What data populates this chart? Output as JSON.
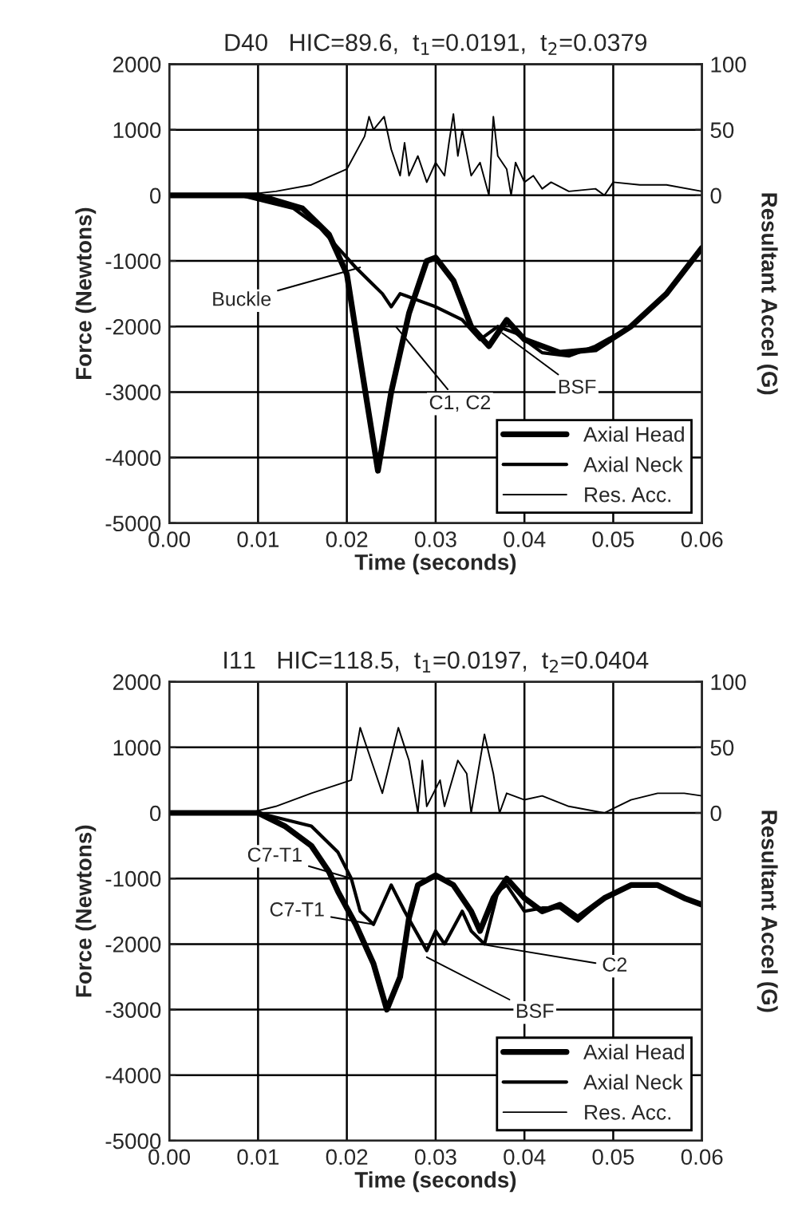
{
  "chart_data": [
    {
      "type": "line",
      "title": "D40   HIC=89.6,  t$_{1}$=0.0191,  t$_{2}$=0.0379",
      "xlabel": "Time (seconds)",
      "ylabel": "Force (Newtons)",
      "y2label": "Resultant Accel (G)",
      "xlim": [
        0,
        0.06
      ],
      "xticks": [
        {
          "value": 0,
          "label": "0.00"
        },
        {
          "value": 0.01,
          "label": "0.01"
        },
        {
          "value": 0.02,
          "label": "0.02"
        },
        {
          "value": 0.03,
          "label": "0.03"
        },
        {
          "value": 0.04,
          "label": "0.04"
        },
        {
          "value": 0.05,
          "label": "0.05"
        },
        {
          "value": 0.06,
          "label": "0.06"
        }
      ],
      "ylim": [
        -5000,
        2000
      ],
      "yticks": [
        -5000,
        -4000,
        -3000,
        -2000,
        -1000,
        0,
        1000,
        2000
      ],
      "y2lim": [
        -250,
        100
      ],
      "y2ticks": [
        0,
        50,
        100
      ],
      "grid": true,
      "legend": "bottom right",
      "series": [
        {
          "name": "Axial Head",
          "color": "#000000",
          "x": [
            0,
            0.01,
            0.015,
            0.018,
            0.02,
            0.0215,
            0.0235,
            0.025,
            0.027,
            0.029,
            0.03,
            0.032,
            0.034,
            0.036,
            0.038,
            0.04,
            0.044,
            0.048,
            0.052,
            0.056,
            0.06
          ],
          "values": [
            0,
            0,
            -200,
            -600,
            -1200,
            -2500,
            -4200,
            -3000,
            -1800,
            -1000,
            -950,
            -1300,
            -2000,
            -2300,
            -1900,
            -2200,
            -2400,
            -2350,
            -2000,
            -1500,
            -800
          ]
        },
        {
          "name": "Axial Neck",
          "color": "#000000",
          "x": [
            0,
            0.008,
            0.014,
            0.017,
            0.019,
            0.021,
            0.0225,
            0.024,
            0.025,
            0.026,
            0.028,
            0.03,
            0.033,
            0.035,
            0.037,
            0.039,
            0.042,
            0.045,
            0.048,
            0.052,
            0.056,
            0.06
          ],
          "values": [
            0,
            0,
            -200,
            -500,
            -800,
            -1100,
            -1300,
            -1500,
            -1700,
            -1500,
            -1600,
            -1700,
            -1900,
            -2200,
            -2000,
            -2100,
            -2400,
            -2450,
            -2300,
            -2000,
            -1500,
            -800
          ]
        },
        {
          "name": "Res. Acc.",
          "color": "#000000",
          "axis": "y2",
          "x": [
            0,
            0.008,
            0.012,
            0.016,
            0.02,
            0.022,
            0.0225,
            0.023,
            0.0242,
            0.025,
            0.026,
            0.0265,
            0.027,
            0.028,
            0.029,
            0.03,
            0.031,
            0.0315,
            0.032,
            0.0325,
            0.033,
            0.034,
            0.035,
            0.036,
            0.0365,
            0.037,
            0.038,
            0.0385,
            0.039,
            0.04,
            0.041,
            0.042,
            0.043,
            0.045,
            0.048,
            0.049,
            0.05,
            0.053,
            0.056,
            0.06
          ],
          "values": [
            0,
            0,
            3,
            8,
            20,
            45,
            60,
            50,
            60,
            35,
            15,
            40,
            15,
            30,
            10,
            25,
            15,
            40,
            62,
            30,
            50,
            15,
            25,
            0,
            60,
            30,
            20,
            0,
            25,
            10,
            15,
            5,
            10,
            3,
            5,
            0,
            10,
            8,
            8,
            3
          ]
        }
      ],
      "annotations": [
        {
          "text": "Buckle",
          "x": 0.0215,
          "y": -1100
        },
        {
          "text": "C1, C2",
          "x": 0.0255,
          "y": -2000
        },
        {
          "text": "BSF",
          "x": 0.0375,
          "y": -2100
        }
      ]
    },
    {
      "type": "line",
      "title": "I11   HIC=118.5,  t$_{1}$=0.0197,  t$_{2}$=0.0404",
      "xlabel": "Time (seconds)",
      "ylabel": "Force (Newtons)",
      "y2label": "Resultant Accel (G)",
      "xlim": [
        0,
        0.06
      ],
      "xticks": [
        {
          "value": 0,
          "label": "0.00"
        },
        {
          "value": 0.01,
          "label": "0.01"
        },
        {
          "value": 0.02,
          "label": "0.02"
        },
        {
          "value": 0.03,
          "label": "0.03"
        },
        {
          "value": 0.04,
          "label": "0.04"
        },
        {
          "value": 0.05,
          "label": "0.05"
        },
        {
          "value": 0.06,
          "label": "0.06"
        }
      ],
      "ylim": [
        -5000,
        2000
      ],
      "yticks": [
        -5000,
        -4000,
        -3000,
        -2000,
        -1000,
        0,
        1000,
        2000
      ],
      "y2lim": [
        -250,
        100
      ],
      "y2ticks": [
        0,
        50,
        100
      ],
      "grid": true,
      "legend": "bottom right",
      "series": [
        {
          "name": "Axial Head",
          "color": "#000000",
          "x": [
            0,
            0.01,
            0.013,
            0.016,
            0.018,
            0.019,
            0.021,
            0.023,
            0.0245,
            0.026,
            0.027,
            0.028,
            0.03,
            0.032,
            0.034,
            0.035,
            0.0365,
            0.038,
            0.04,
            0.042,
            0.044,
            0.046,
            0.049,
            0.052,
            0.055,
            0.058,
            0.06
          ],
          "values": [
            0,
            0,
            -200,
            -500,
            -900,
            -1200,
            -1700,
            -2300,
            -3000,
            -2500,
            -1600,
            -1100,
            -950,
            -1100,
            -1500,
            -1800,
            -1300,
            -1000,
            -1300,
            -1500,
            -1400,
            -1600,
            -1300,
            -1100,
            -1100,
            -1300,
            -1400
          ]
        },
        {
          "name": "Axial Neck",
          "color": "#000000",
          "x": [
            0,
            0.01,
            0.016,
            0.019,
            0.0205,
            0.0215,
            0.023,
            0.025,
            0.0265,
            0.029,
            0.03,
            0.031,
            0.033,
            0.034,
            0.0355,
            0.037,
            0.038,
            0.04,
            0.042,
            0.044,
            0.046,
            0.049,
            0.052,
            0.055,
            0.058,
            0.06
          ],
          "values": [
            0,
            0,
            -200,
            -600,
            -1000,
            -1500,
            -1700,
            -1100,
            -1500,
            -2100,
            -1800,
            -2000,
            -1500,
            -1800,
            -2000,
            -1200,
            -1100,
            -1500,
            -1450,
            -1450,
            -1650,
            -1300,
            -1100,
            -1100,
            -1300,
            -1400
          ]
        },
        {
          "name": "Res. Acc.",
          "color": "#000000",
          "axis": "y2",
          "x": [
            0,
            0.009,
            0.012,
            0.016,
            0.0205,
            0.0215,
            0.023,
            0.024,
            0.0258,
            0.027,
            0.028,
            0.0285,
            0.029,
            0.0305,
            0.031,
            0.0325,
            0.0335,
            0.034,
            0.0355,
            0.0365,
            0.0372,
            0.038,
            0.04,
            0.042,
            0.045,
            0.049,
            0.052,
            0.055,
            0.058,
            0.06
          ],
          "values": [
            0,
            0,
            5,
            15,
            25,
            65,
            35,
            15,
            65,
            40,
            0,
            40,
            5,
            25,
            5,
            40,
            30,
            0,
            60,
            30,
            0,
            15,
            10,
            13,
            5,
            0,
            10,
            15,
            15,
            13
          ]
        }
      ],
      "annotations": [
        {
          "text": "C7-T1",
          "x": 0.0205,
          "y": -1000
        },
        {
          "text": "C7-T1",
          "x": 0.023,
          "y": -1700
        },
        {
          "text": "BSF",
          "x": 0.029,
          "y": -2200
        },
        {
          "text": "C2",
          "x": 0.035,
          "y": -2000
        }
      ]
    }
  ]
}
